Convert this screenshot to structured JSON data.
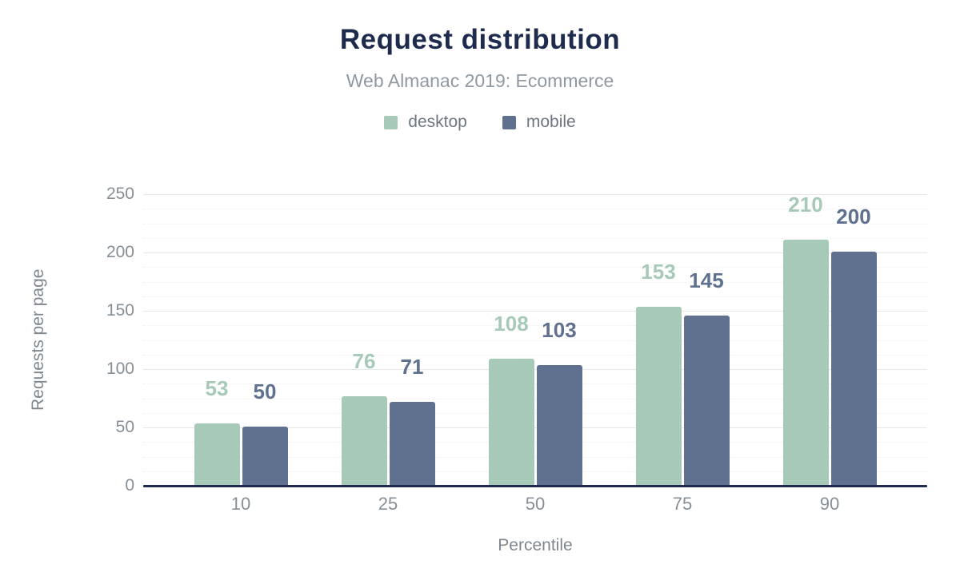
{
  "chart_data": {
    "type": "bar",
    "title": "Request distribution",
    "subtitle": "Web Almanac 2019: Ecommerce",
    "categories": [
      "10",
      "25",
      "50",
      "75",
      "90"
    ],
    "series": [
      {
        "name": "desktop",
        "color": "#a7c9b8",
        "values": [
          53,
          76,
          108,
          153,
          210
        ]
      },
      {
        "name": "mobile",
        "color": "#60718f",
        "values": [
          50,
          71,
          103,
          145,
          200
        ]
      }
    ],
    "xlabel": "Percentile",
    "ylabel": "Requests per page",
    "ylim": [
      0,
      250
    ],
    "yticks": [
      0,
      50,
      100,
      150,
      200,
      250
    ],
    "minor_grid_step": 12.5,
    "grid": "horizontal only; major solid light gray, minor dotted",
    "legend_position": "top-center",
    "value_labels": "above each bar, bold, colored to match series"
  },
  "colors": {
    "background": "#ffffff",
    "title": "#1e2b4d",
    "subtitle": "#9099a1",
    "axis_baseline": "#1e2b4d",
    "tick_text": "#878f96",
    "axis_title_text": "#7f878e",
    "legend_text": "#6e7780",
    "grid_major": "#e7e7e7",
    "grid_minor": "#efefef",
    "desktop": "#a7c9b8",
    "mobile": "#60718f"
  }
}
